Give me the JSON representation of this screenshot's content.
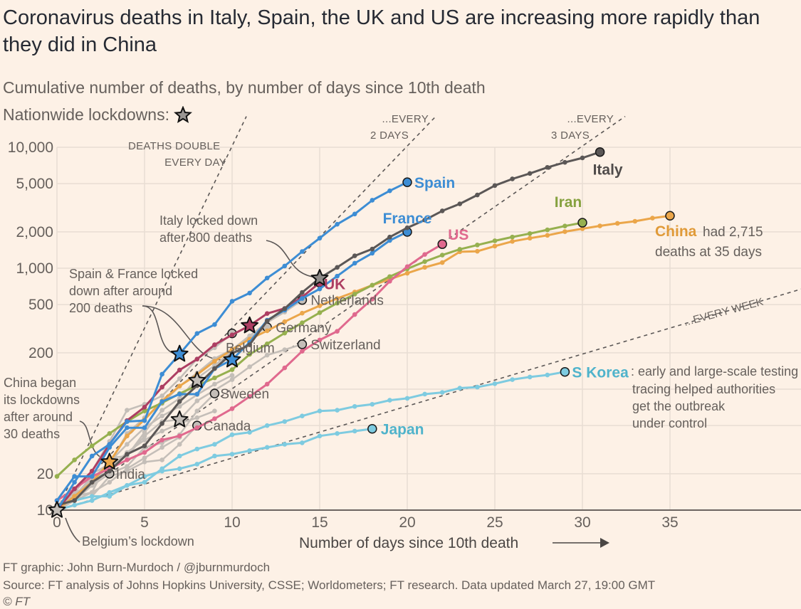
{
  "header": {
    "title": "Coronavirus deaths in Italy, Spain, the UK and US are increasing more rapidly than they did in China",
    "subtitle": "Cumulative number of deaths, by number of days since 10th death",
    "lockdown_legend": "Nationwide lockdowns:",
    "lockdown_icon": "star-icon"
  },
  "chart_data": {
    "type": "line",
    "xlabel": "Number of days since 10th death",
    "ylabel": "",
    "y_scale": "log",
    "xlim": [
      0,
      42
    ],
    "ylim": [
      10,
      10000
    ],
    "x_ticks": [
      "0",
      "5",
      "10",
      "15",
      "20",
      "25",
      "30",
      "35"
    ],
    "x_tick_values": [
      0,
      5,
      10,
      15,
      20,
      25,
      30,
      35
    ],
    "y_ticks": [
      "10,000",
      "5,000",
      "2,000",
      "1,000",
      "500",
      "200",
      "20",
      "10"
    ],
    "y_tick_values": [
      10000,
      5000,
      2000,
      1000,
      500,
      200,
      20,
      10
    ],
    "y_grid_values": [
      10,
      20,
      50,
      100,
      200,
      500,
      1000,
      2000,
      5000,
      10000
    ],
    "grid": true,
    "series": [
      {
        "name": "",
        "color": "#c4beb8",
        "values": [
          10,
          13,
          18,
          25,
          35,
          48,
          60,
          72,
          90,
          110,
          130
        ]
      },
      {
        "name": "",
        "color": "#c4beb8",
        "values": [
          11,
          14,
          16,
          22,
          30,
          38,
          45,
          52,
          58,
          66
        ]
      },
      {
        "name": "",
        "color": "#c4beb8",
        "values": [
          10,
          12,
          14,
          17,
          22,
          27,
          33,
          40
        ]
      },
      {
        "name": "Netherlands",
        "color": "#c4beb8",
        "values": [
          10,
          12,
          20,
          24,
          43,
          58,
          76,
          106,
          136,
          179,
          213,
          276,
          356,
          434,
          546
        ]
      },
      {
        "name": "Germany",
        "color": "#c4beb8",
        "values": [
          10,
          13,
          17,
          24,
          28,
          44,
          67,
          84,
          123,
          157,
          206,
          267,
          325
        ]
      },
      {
        "name": "Belgium",
        "color": "#c4beb8",
        "values": [
          10,
          14,
          21,
          37,
          67,
          75,
          88,
          122,
          178,
          220,
          289
        ]
      },
      {
        "name": "Switzerland",
        "color": "#c4beb8",
        "values": [
          11,
          13,
          14,
          27,
          28,
          41,
          54,
          56,
          80,
          98,
          120,
          153,
          191,
          212,
          235
        ]
      },
      {
        "name": "Sweden",
        "color": "#c4beb8",
        "values": [
          10,
          12,
          16,
          20,
          23,
          33,
          36,
          42,
          66,
          92
        ]
      },
      {
        "name": "Canada",
        "color": "#c4beb8",
        "values": [
          10,
          12,
          13,
          19,
          21,
          25,
          26,
          35,
          50
        ]
      },
      {
        "name": "India",
        "color": "#c4beb8",
        "values": [
          10,
          13,
          19,
          20
        ]
      },
      {
        "name": "Japan",
        "color": "#7ecbe0",
        "values": [
          10,
          11,
          12,
          14,
          16,
          19,
          21,
          22,
          24,
          28,
          29,
          31,
          33,
          35,
          36,
          41,
          43,
          45,
          47
        ]
      },
      {
        "name": "S Korea",
        "color": "#7ecbe0",
        "values": [
          11,
          12,
          13,
          13,
          16,
          17,
          22,
          28,
          32,
          35,
          42,
          44,
          50,
          54,
          60,
          66,
          67,
          72,
          75,
          81,
          84,
          91,
          94,
          102,
          104,
          111,
          120,
          126,
          131,
          139
        ]
      },
      {
        "name": "China",
        "color": "#eba64a",
        "values": [
          10,
          13,
          17,
          25,
          41,
          56,
          80,
          106,
          132,
          170,
          213,
          259,
          304,
          361,
          425,
          490,
          562,
          636,
          723,
          812,
          909,
          1017,
          1114,
          1368,
          1381,
          1524,
          1666,
          1772,
          1870,
          2006,
          2121,
          2239,
          2348,
          2445,
          2595,
          2715
        ]
      },
      {
        "name": "Iran",
        "color": "#96b04f",
        "values": [
          19,
          26,
          34,
          43,
          54,
          66,
          77,
          92,
          107,
          124,
          145,
          194,
          237,
          291,
          354,
          429,
          514,
          611,
          724,
          853,
          988,
          1135,
          1284,
          1433,
          1556,
          1685,
          1812,
          1934,
          2077,
          2234,
          2378
        ]
      },
      {
        "name": "US",
        "color": "#e0698e",
        "values": [
          12,
          15,
          19,
          22,
          26,
          30,
          38,
          41,
          48,
          57,
          69,
          87,
          110,
          150,
          206,
          255,
          301,
          414,
          555,
          780,
          1030,
          1300,
          1581
        ]
      },
      {
        "name": "UK",
        "color": "#ad3e62",
        "values": [
          10,
          15,
          21,
          35,
          55,
          71,
          104,
          144,
          177,
          233,
          281,
          335,
          422,
          465,
          578,
          759
        ]
      },
      {
        "name": "France",
        "color": "#3d8dd4",
        "values": [
          12,
          19,
          19,
          33,
          48,
          48,
          79,
          91,
          91,
          148,
          175,
          244,
          372,
          450,
          562,
          674,
          860,
          1100,
          1331,
          1696,
          1995
        ]
      },
      {
        "name": "Italy",
        "color": "#5b5756",
        "values": [
          11,
          12,
          17,
          21,
          29,
          34,
          52,
          79,
          107,
          148,
          197,
          233,
          366,
          463,
          631,
          827,
          1016,
          1266,
          1441,
          1809,
          2158,
          2503,
          2978,
          3405,
          4032,
          4825,
          5476,
          6077,
          6820,
          7503,
          8165,
          9134
        ]
      },
      {
        "name": "Spain",
        "color": "#3d8dd4",
        "values": [
          10,
          17,
          28,
          35,
          54,
          55,
          133,
          195,
          289,
          342,
          533,
          623,
          830,
          1043,
          1375,
          1772,
          2311,
          2808,
          3647,
          4365,
          5138
        ]
      }
    ],
    "lockdowns": [
      {
        "day": 0,
        "deaths": 10,
        "color": "#c4beb8"
      },
      {
        "day": 3,
        "deaths": 25,
        "color": "#eba64a"
      },
      {
        "day": 7,
        "deaths": 56,
        "color": "#c4beb8"
      },
      {
        "day": 8,
        "deaths": 118,
        "color": "#c4beb8"
      },
      {
        "day": 7,
        "deaths": 195,
        "color": "#3d8dd4"
      },
      {
        "day": 10,
        "deaths": 175,
        "color": "#3d8dd4"
      },
      {
        "day": 11,
        "deaths": 335,
        "color": "#ad3e62"
      },
      {
        "day": 15,
        "deaths": 827,
        "color": "#8e8a87"
      }
    ],
    "reference_lines": [
      {
        "label": [
          "DEATHS DOUBLE",
          "EVERY DAY"
        ],
        "doubling_days": 1
      },
      {
        "label": [
          "...EVERY",
          "2 DAYS"
        ],
        "doubling_days": 2
      },
      {
        "label": [
          "...EVERY",
          "3 DAYS"
        ],
        "doubling_days": 3
      },
      {
        "label": [
          "...EVERY WEEK"
        ],
        "doubling_days": 7
      }
    ],
    "annotations": {
      "italy": [
        "Italy locked down",
        "after 800 deaths"
      ],
      "spain_france": [
        "Spain & France locked",
        "down after around",
        "200 deaths"
      ],
      "china_began": [
        "China began",
        "its lockdowns",
        "after around",
        "30 deaths"
      ],
      "belgium": "Belgium’s lockdown",
      "china_note": [
        "had 2,715",
        "deaths at 35 days"
      ],
      "skorea_note": [
        ": early and large-scale testing and",
        "tracing helped authorities",
        "get the outbreak",
        "under control"
      ]
    },
    "label_colors": {
      "Spain": "#3d8dd4",
      "France": "#3d8dd4",
      "Italy": "#4f4b4a",
      "Iran": "#86a13f",
      "US": "#e0698e",
      "UK": "#ad3e62",
      "China": "#e09a38",
      "Japan": "#4fb3cb",
      "S Korea": "#4fb3cb"
    }
  },
  "footer": {
    "credit": "FT graphic: John Burn-Murdoch / @jburnmurdoch",
    "source": "Source: FT analysis of Johns Hopkins University, CSSE; Worldometers; FT research. Data updated March 27, 19:00 GMT",
    "copyright": "© FT"
  }
}
